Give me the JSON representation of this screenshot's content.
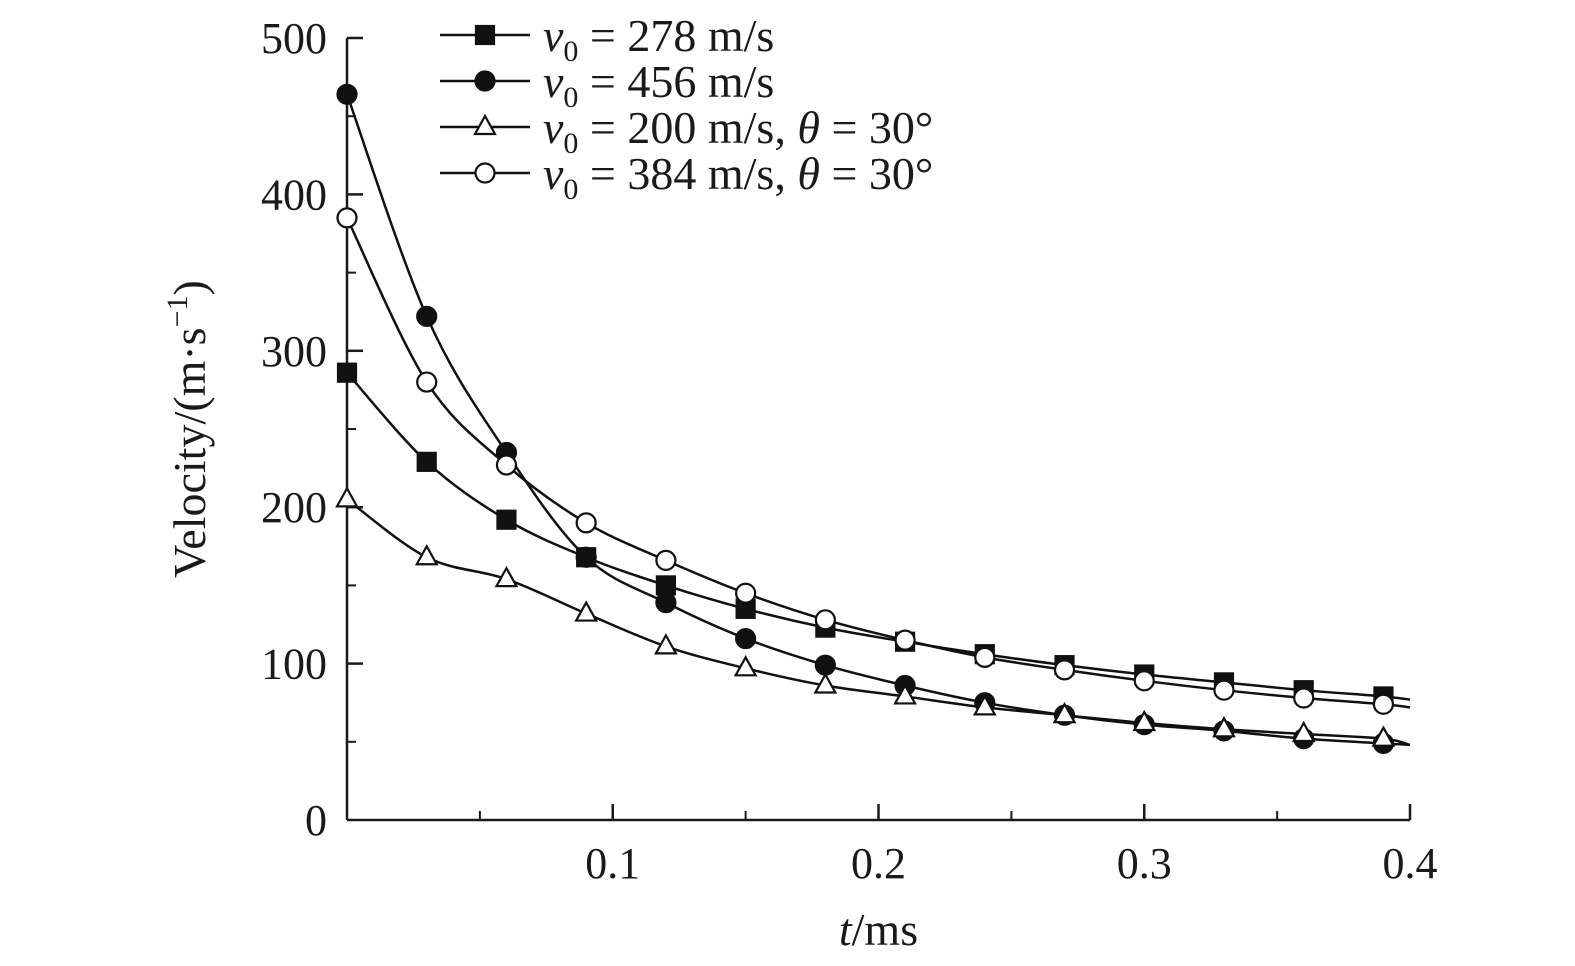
{
  "chart_data": {
    "type": "line",
    "xlabel": "t/ms",
    "ylabel": "Velocity/(m·s⁻¹)",
    "xlim": [
      0,
      0.4
    ],
    "ylim": [
      0,
      500
    ],
    "x_ticks": [
      0.1,
      0.2,
      0.3,
      0.4
    ],
    "x_tick_labels": [
      "0.1",
      "0.2",
      "0.3",
      "0.4"
    ],
    "y_ticks": [
      0,
      100,
      200,
      300,
      400,
      500
    ],
    "y_tick_labels": [
      "0",
      "100",
      "200",
      "300",
      "400",
      "500"
    ],
    "grid": false,
    "legend_position": "top",
    "series": [
      {
        "name": "v0 = 278 m/s",
        "marker": "filled-square",
        "x": [
          0,
          0.03,
          0.06,
          0.09,
          0.12,
          0.15,
          0.18,
          0.21,
          0.24,
          0.27,
          0.3,
          0.33,
          0.36,
          0.39,
          0.4
        ],
        "y": [
          286,
          229,
          192,
          168,
          150,
          135,
          123,
          114,
          106,
          99,
          93,
          88,
          83,
          79,
          77
        ],
        "marker_points": 14
      },
      {
        "name": "v0 = 456 m/s",
        "marker": "filled-circle",
        "x": [
          0,
          0.03,
          0.06,
          0.09,
          0.12,
          0.15,
          0.18,
          0.21,
          0.24,
          0.27,
          0.3,
          0.33,
          0.36,
          0.39,
          0.4
        ],
        "y": [
          464,
          322,
          235,
          168,
          139,
          116,
          99,
          86,
          75,
          67,
          61,
          57,
          52,
          49,
          48
        ],
        "marker_points": 14
      },
      {
        "name": "v0 = 200 m/s, θ = 30°",
        "marker": "open-triangle",
        "x": [
          0,
          0.03,
          0.06,
          0.09,
          0.12,
          0.15,
          0.18,
          0.21,
          0.24,
          0.27,
          0.3,
          0.33,
          0.36,
          0.39,
          0.4
        ],
        "y": [
          205,
          168,
          154,
          132,
          111,
          97,
          86,
          79,
          72,
          67,
          62,
          58,
          55,
          52,
          48
        ],
        "marker_points": 14
      },
      {
        "name": "v0 = 384 m/s, θ = 30°",
        "marker": "open-circle",
        "x": [
          0,
          0.03,
          0.06,
          0.09,
          0.12,
          0.15,
          0.18,
          0.21,
          0.24,
          0.27,
          0.3,
          0.33,
          0.36,
          0.39,
          0.4
        ],
        "y": [
          385,
          280,
          227,
          190,
          166,
          145,
          128,
          115,
          104,
          96,
          89,
          83,
          78,
          74,
          72
        ],
        "marker_points": 14
      }
    ],
    "legend": [
      {
        "var": "v",
        "sub": "0",
        "rest": " = 278 m/s"
      },
      {
        "var": "v",
        "sub": "0",
        "rest": " = 456 m/s"
      },
      {
        "var": "v",
        "sub": "0",
        "rest": " = 200 m/s, ",
        "var2": "θ",
        "rest2": " = 30°"
      },
      {
        "var": "v",
        "sub": "0",
        "rest": " = 384 m/s, ",
        "var2": "θ",
        "rest2": " = 30°"
      }
    ],
    "xlabel_parts": {
      "italic": "t",
      "rest": "/ms"
    },
    "ylabel_parts": {
      "main": "Velocity/(m·s",
      "sup": "−1",
      "close": ")"
    }
  }
}
